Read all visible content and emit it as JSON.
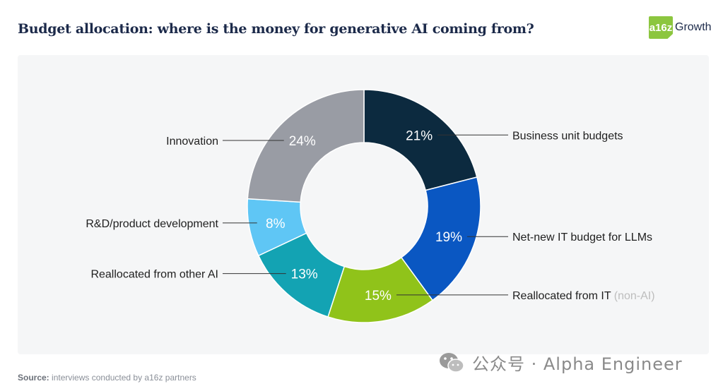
{
  "header": {
    "title": "Budget allocation: where is the money for generative AI coming from?",
    "logo_mark": "a16z",
    "logo_word": "Growth"
  },
  "colors": {
    "title": "#1c2a4a",
    "leader_line": "#333333",
    "label": "#1f1f1f",
    "muted": "#bdbdbd"
  },
  "chart_data": {
    "type": "pie",
    "variant": "donut",
    "title": "",
    "slices": [
      {
        "label": "Business unit budgets",
        "suffix": "",
        "value": 21,
        "display": "21%",
        "color": "#0c2a3f",
        "side": "right"
      },
      {
        "label": "Net-new IT budget for LLMs",
        "suffix": "",
        "value": 19,
        "display": "19%",
        "color": "#0a57c2",
        "side": "right"
      },
      {
        "label": "Reallocated from IT",
        "suffix": "(non-AI)",
        "value": 15,
        "display": "15%",
        "color": "#90c31a",
        "side": "right"
      },
      {
        "label": "Reallocated from other AI",
        "suffix": "",
        "value": 13,
        "display": "13%",
        "color": "#13a3b3",
        "side": "left"
      },
      {
        "label": "R&D/product development",
        "suffix": "",
        "value": 8,
        "display": "8%",
        "color": "#5fc6f5",
        "side": "left"
      },
      {
        "label": "Innovation",
        "suffix": "",
        "value": 24,
        "display": "24%",
        "color": "#999ca4",
        "side": "left"
      }
    ]
  },
  "footer": {
    "source_label": "Source:",
    "source_text": "interviews conducted by a16z partners",
    "watermark": "公众号 · Alpha Engineer"
  }
}
